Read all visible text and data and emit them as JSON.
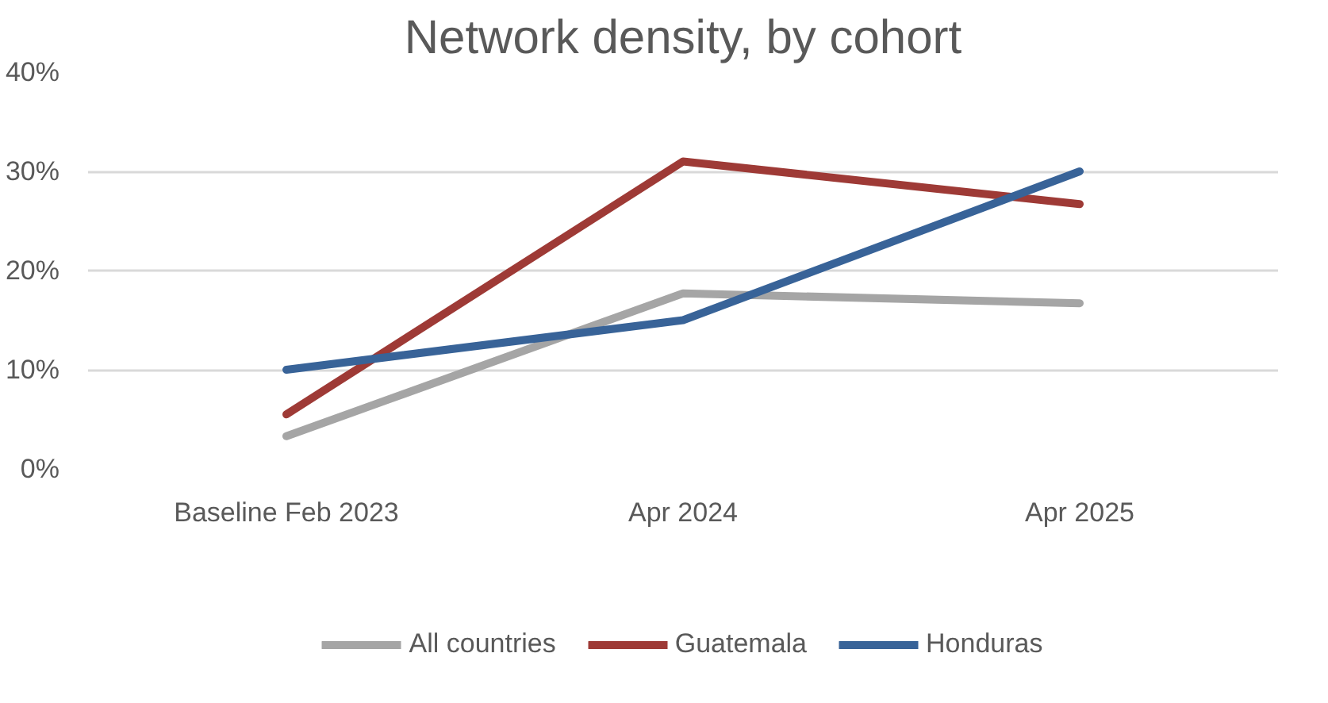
{
  "chart_data": {
    "type": "line",
    "title": "Network density, by cohort",
    "categories": [
      "Baseline Feb 2023",
      "Apr 2024",
      "Apr 2025"
    ],
    "series": [
      {
        "name": "All countries",
        "color": "#a5a5a5",
        "values": [
          3.3,
          17.7,
          16.7
        ]
      },
      {
        "name": "Guatemala",
        "color": "#9e3a36",
        "values": [
          5.5,
          31,
          26.7
        ]
      },
      {
        "name": "Honduras",
        "color": "#386398",
        "values": [
          10,
          15,
          30
        ]
      }
    ],
    "ylim": [
      0,
      40
    ],
    "yticks": [
      {
        "value": 0,
        "label": "0%"
      },
      {
        "value": 10,
        "label": "10%"
      },
      {
        "value": 20,
        "label": "20%"
      },
      {
        "value": 30,
        "label": "30%"
      },
      {
        "value": 40,
        "label": "40%"
      }
    ],
    "grid": "y",
    "legend": "bottom",
    "marker": "none",
    "line_style": "solid"
  }
}
